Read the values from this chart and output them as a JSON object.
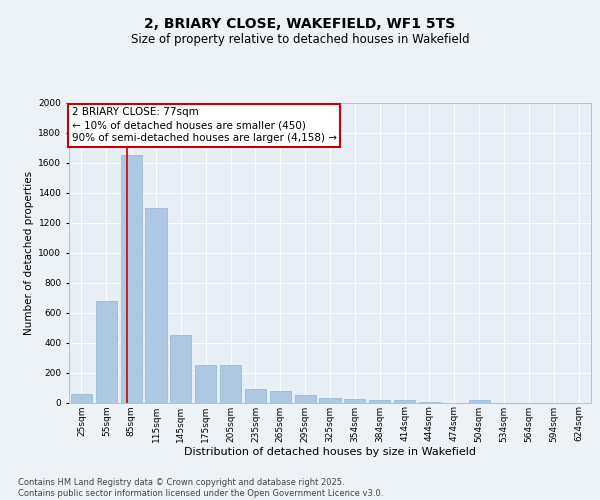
{
  "title": "2, BRIARY CLOSE, WAKEFIELD, WF1 5TS",
  "subtitle": "Size of property relative to detached houses in Wakefield",
  "xlabel": "Distribution of detached houses by size in Wakefield",
  "ylabel": "Number of detached properties",
  "categories": [
    "25sqm",
    "55sqm",
    "85sqm",
    "115sqm",
    "145sqm",
    "175sqm",
    "205sqm",
    "235sqm",
    "265sqm",
    "295sqm",
    "325sqm",
    "354sqm",
    "384sqm",
    "414sqm",
    "444sqm",
    "474sqm",
    "504sqm",
    "534sqm",
    "564sqm",
    "594sqm",
    "624sqm"
  ],
  "values": [
    60,
    680,
    1650,
    1300,
    450,
    250,
    250,
    90,
    80,
    50,
    30,
    25,
    20,
    15,
    5,
    0,
    20,
    0,
    0,
    0,
    0
  ],
  "bar_color": "#adc8e0",
  "bar_edge_color": "#90b4d0",
  "ylim": [
    0,
    2000
  ],
  "yticks": [
    0,
    200,
    400,
    600,
    800,
    1000,
    1200,
    1400,
    1600,
    1800,
    2000
  ],
  "vline_x": 1.85,
  "vline_color": "#cc0000",
  "annotation_text": "2 BRIARY CLOSE: 77sqm\n← 10% of detached houses are smaller (450)\n90% of semi-detached houses are larger (4,158) →",
  "annotation_box_color": "#cc0000",
  "footer_text": "Contains HM Land Registry data © Crown copyright and database right 2025.\nContains public sector information licensed under the Open Government Licence v3.0.",
  "bg_color": "#edf2f7",
  "plot_bg_color": "#e8eef5",
  "grid_color": "#ffffff",
  "title_fontsize": 10,
  "subtitle_fontsize": 8.5,
  "xlabel_fontsize": 8,
  "ylabel_fontsize": 7.5,
  "tick_fontsize": 6.5,
  "annotation_fontsize": 7.5,
  "footer_fontsize": 6
}
